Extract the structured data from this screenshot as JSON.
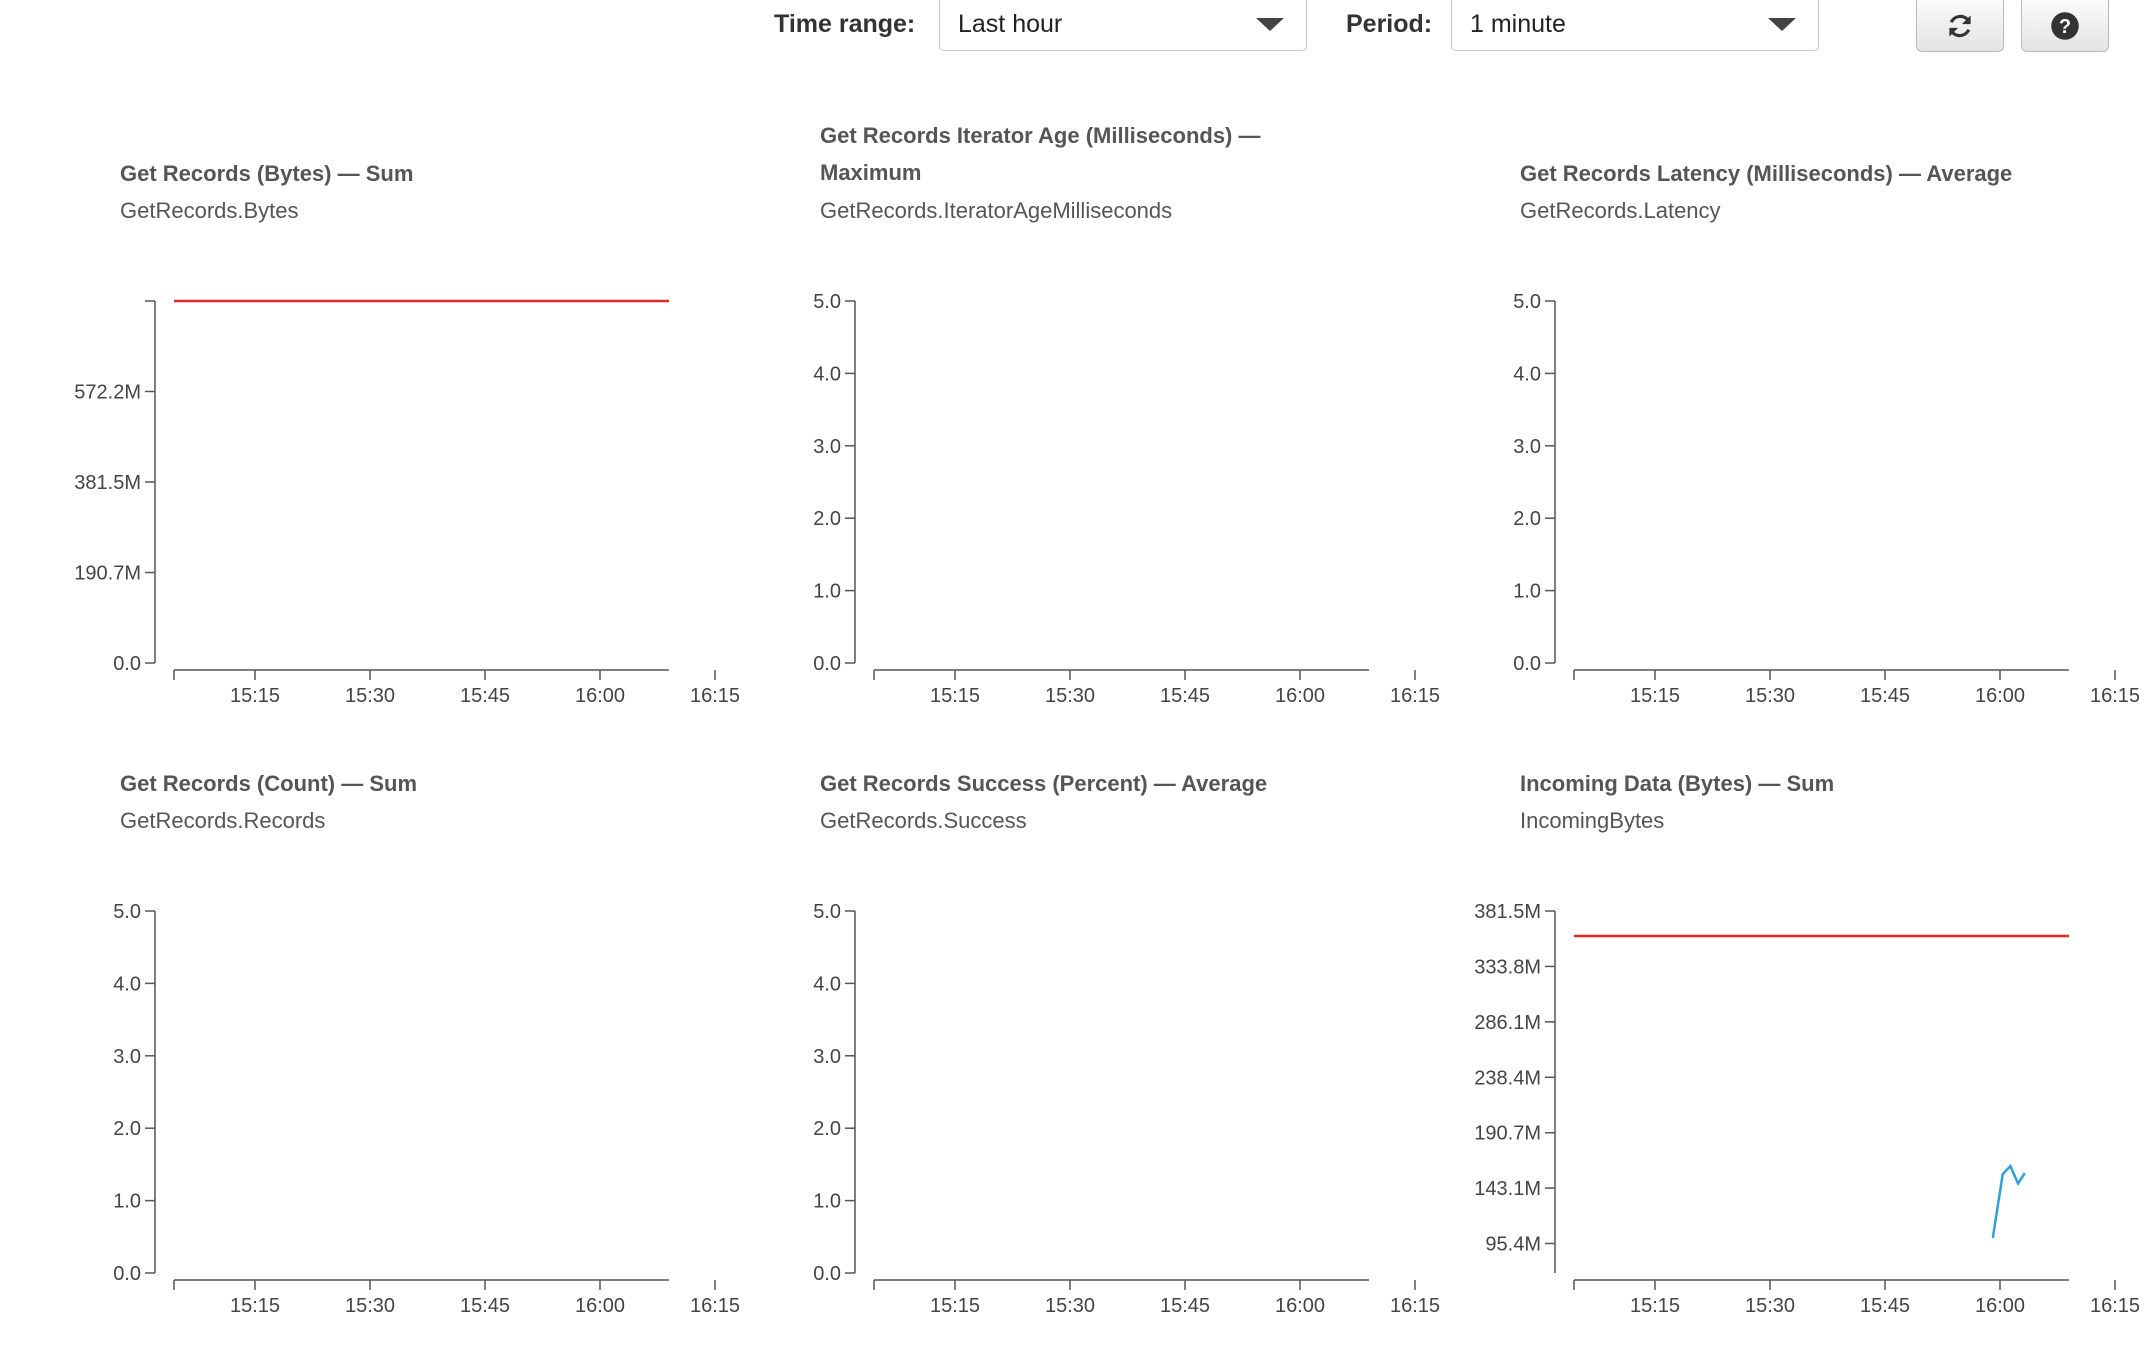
{
  "toolbar": {
    "time_range_label": "Time range:",
    "time_range_value": "Last hour",
    "period_label": "Period:",
    "period_value": "1 minute",
    "refresh_icon": "refresh-icon",
    "help_icon": "question-circle-icon"
  },
  "x_ticks": [
    "15:15",
    "15:30",
    "15:45",
    "16:00",
    "16:15"
  ],
  "chart_data": [
    {
      "type": "line",
      "title": "Get Records (Bytes) — Sum",
      "metric": "GetRecords.Bytes",
      "y_ticks": [
        "0.0",
        "190.7M",
        "381.5M",
        "572.2M"
      ],
      "ylim": [
        0,
        762900000
      ],
      "series": [
        {
          "color": "#e3262b",
          "values": [
            [
              0,
              762900000
            ],
            [
              65,
              762900000
            ]
          ]
        }
      ]
    },
    {
      "type": "line",
      "title": "Get Records Iterator Age (Milliseconds) — Maximum",
      "metric": "GetRecords.IteratorAgeMilliseconds",
      "y_ticks": [
        "0.0",
        "1.0",
        "2.0",
        "3.0",
        "4.0",
        "5.0"
      ],
      "ylim": [
        0,
        5
      ],
      "series": []
    },
    {
      "type": "line",
      "title": "Get Records Latency (Milliseconds) — Average",
      "metric": "GetRecords.Latency",
      "y_ticks": [
        "0.0",
        "1.0",
        "2.0",
        "3.0",
        "4.0",
        "5.0"
      ],
      "ylim": [
        0,
        5
      ],
      "series": []
    },
    {
      "type": "line",
      "title": "Get Records (Count) — Sum",
      "metric": "GetRecords.Records",
      "y_ticks": [
        "0.0",
        "1.0",
        "2.0",
        "3.0",
        "4.0",
        "5.0"
      ],
      "ylim": [
        0,
        5
      ],
      "series": []
    },
    {
      "type": "line",
      "title": "Get Records Success (Percent) — Average",
      "metric": "GetRecords.Success",
      "y_ticks": [
        "0.0",
        "1.0",
        "2.0",
        "3.0",
        "4.0",
        "5.0"
      ],
      "ylim": [
        0,
        5
      ],
      "series": []
    },
    {
      "type": "line",
      "title": "Incoming Data (Bytes) — Sum",
      "metric": "IncomingBytes",
      "y_ticks": [
        "95.4M",
        "143.1M",
        "190.7M",
        "238.4M",
        "286.1M",
        "333.8M",
        "381.5M"
      ],
      "ylim": [
        70000000,
        381500000
      ],
      "series": [
        {
          "color": "#e3262b",
          "values": [
            [
              0,
              360000000
            ],
            [
              65,
              360000000
            ]
          ]
        },
        {
          "color": "#2ea1d8",
          "values": [
            [
              55,
              100000000
            ],
            [
              56.3,
              155000000
            ],
            [
              57.3,
              162000000
            ],
            [
              58.3,
              147000000
            ],
            [
              59.2,
              156000000
            ]
          ]
        }
      ]
    }
  ]
}
